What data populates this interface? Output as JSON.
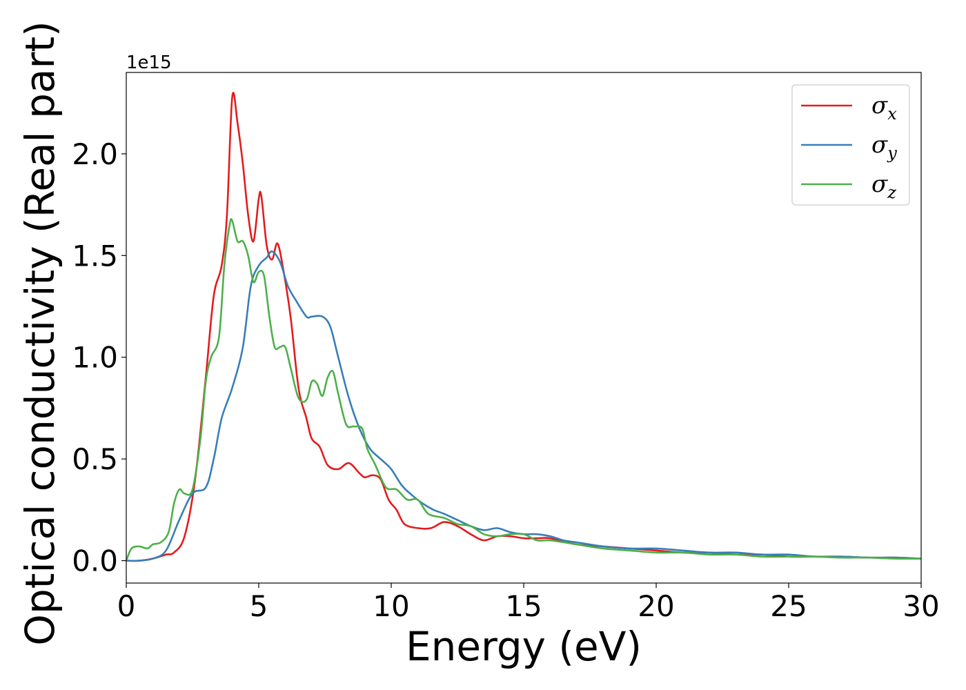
{
  "chart_data": {
    "type": "line",
    "title": "",
    "xlabel": "Energy (eV)",
    "ylabel": "Optical conductivity (Real part)",
    "y_offset_label": "1e15",
    "xlim": [
      0,
      30
    ],
    "ylim": [
      -0.11,
      2.4
    ],
    "x_ticks": [
      0,
      5,
      10,
      15,
      20,
      25,
      30
    ],
    "x_tick_labels": [
      "0",
      "5",
      "10",
      "15",
      "20",
      "25",
      "30"
    ],
    "y_ticks": [
      0.0,
      0.5,
      1.0,
      1.5,
      2.0
    ],
    "y_tick_labels": [
      "0.0",
      "0.5",
      "1.0",
      "1.5",
      "2.0"
    ],
    "grid": false,
    "legend_position": "top-right",
    "series": [
      {
        "name": "σx",
        "legend_main": "σ",
        "legend_sub": "x",
        "color": "#e41a1c",
        "points": [
          [
            0,
            0
          ],
          [
            0.5,
            0
          ],
          [
            1,
            0.01
          ],
          [
            1.5,
            0.03
          ],
          [
            1.8,
            0.04
          ],
          [
            2.2,
            0.12
          ],
          [
            2.6,
            0.4
          ],
          [
            3.0,
            0.9
          ],
          [
            3.3,
            1.3
          ],
          [
            3.6,
            1.45
          ],
          [
            3.8,
            1.7
          ],
          [
            4.0,
            2.28
          ],
          [
            4.2,
            2.15
          ],
          [
            4.4,
            1.95
          ],
          [
            4.6,
            1.7
          ],
          [
            4.8,
            1.57
          ],
          [
            5.0,
            1.78
          ],
          [
            5.1,
            1.79
          ],
          [
            5.3,
            1.55
          ],
          [
            5.5,
            1.48
          ],
          [
            5.7,
            1.56
          ],
          [
            5.9,
            1.45
          ],
          [
            6.2,
            1.2
          ],
          [
            6.5,
            0.85
          ],
          [
            6.8,
            0.7
          ],
          [
            7.0,
            0.6
          ],
          [
            7.3,
            0.56
          ],
          [
            7.6,
            0.47
          ],
          [
            8.0,
            0.45
          ],
          [
            8.4,
            0.48
          ],
          [
            8.8,
            0.43
          ],
          [
            9.0,
            0.41
          ],
          [
            9.3,
            0.42
          ],
          [
            9.6,
            0.4
          ],
          [
            9.9,
            0.3
          ],
          [
            10.2,
            0.25
          ],
          [
            10.5,
            0.18
          ],
          [
            11.0,
            0.16
          ],
          [
            11.5,
            0.16
          ],
          [
            12.0,
            0.19
          ],
          [
            12.5,
            0.17
          ],
          [
            13.0,
            0.13
          ],
          [
            13.5,
            0.1
          ],
          [
            14.0,
            0.12
          ],
          [
            14.5,
            0.12
          ],
          [
            15.0,
            0.11
          ],
          [
            15.5,
            0.11
          ],
          [
            16.0,
            0.11
          ],
          [
            17.0,
            0.08
          ],
          [
            18.0,
            0.07
          ],
          [
            19.0,
            0.06
          ],
          [
            20.0,
            0.05
          ],
          [
            21.0,
            0.04
          ],
          [
            22.0,
            0.04
          ],
          [
            23.0,
            0.03
          ],
          [
            24.0,
            0.03
          ],
          [
            25.0,
            0.02
          ],
          [
            26.0,
            0.02
          ],
          [
            27.0,
            0.02
          ],
          [
            28.0,
            0.015
          ],
          [
            29.0,
            0.015
          ],
          [
            30.0,
            0.01
          ]
        ]
      },
      {
        "name": "σy",
        "legend_main": "σ",
        "legend_sub": "y",
        "color": "#377eb8",
        "points": [
          [
            0,
            0
          ],
          [
            0.5,
            0
          ],
          [
            1,
            0.01
          ],
          [
            1.5,
            0.05
          ],
          [
            2.0,
            0.2
          ],
          [
            2.5,
            0.33
          ],
          [
            3.0,
            0.36
          ],
          [
            3.3,
            0.5
          ],
          [
            3.6,
            0.7
          ],
          [
            4.0,
            0.85
          ],
          [
            4.4,
            1.05
          ],
          [
            4.7,
            1.35
          ],
          [
            5.0,
            1.45
          ],
          [
            5.3,
            1.49
          ],
          [
            5.5,
            1.52
          ],
          [
            5.8,
            1.47
          ],
          [
            6.1,
            1.35
          ],
          [
            6.4,
            1.28
          ],
          [
            6.8,
            1.2
          ],
          [
            7.0,
            1.2
          ],
          [
            7.4,
            1.2
          ],
          [
            7.7,
            1.15
          ],
          [
            8.0,
            1.0
          ],
          [
            8.4,
            0.8
          ],
          [
            8.8,
            0.65
          ],
          [
            9.2,
            0.55
          ],
          [
            9.6,
            0.5
          ],
          [
            10.0,
            0.45
          ],
          [
            10.4,
            0.37
          ],
          [
            10.8,
            0.32
          ],
          [
            11.2,
            0.28
          ],
          [
            11.6,
            0.25
          ],
          [
            12.0,
            0.23
          ],
          [
            12.5,
            0.2
          ],
          [
            13.0,
            0.17
          ],
          [
            13.5,
            0.15
          ],
          [
            14.0,
            0.16
          ],
          [
            14.5,
            0.14
          ],
          [
            15.0,
            0.13
          ],
          [
            15.5,
            0.13
          ],
          [
            16.0,
            0.12
          ],
          [
            16.5,
            0.1
          ],
          [
            17.0,
            0.09
          ],
          [
            18.0,
            0.07
          ],
          [
            19.0,
            0.06
          ],
          [
            20.0,
            0.06
          ],
          [
            21.0,
            0.05
          ],
          [
            22.0,
            0.04
          ],
          [
            23.0,
            0.04
          ],
          [
            24.0,
            0.03
          ],
          [
            25.0,
            0.03
          ],
          [
            26.0,
            0.02
          ],
          [
            27.0,
            0.02
          ],
          [
            28.0,
            0.015
          ],
          [
            29.0,
            0.015
          ],
          [
            30.0,
            0.01
          ]
        ]
      },
      {
        "name": "σz",
        "legend_main": "σ",
        "legend_sub": "z",
        "color": "#4daf4a",
        "points": [
          [
            0,
            0
          ],
          [
            0.2,
            0.06
          ],
          [
            0.5,
            0.07
          ],
          [
            0.8,
            0.06
          ],
          [
            1.0,
            0.08
          ],
          [
            1.3,
            0.09
          ],
          [
            1.6,
            0.14
          ],
          [
            1.8,
            0.28
          ],
          [
            2.0,
            0.35
          ],
          [
            2.2,
            0.33
          ],
          [
            2.5,
            0.35
          ],
          [
            2.8,
            0.6
          ],
          [
            3.0,
            0.88
          ],
          [
            3.2,
            1.0
          ],
          [
            3.5,
            1.1
          ],
          [
            3.7,
            1.45
          ],
          [
            3.9,
            1.65
          ],
          [
            4.0,
            1.67
          ],
          [
            4.2,
            1.57
          ],
          [
            4.4,
            1.57
          ],
          [
            4.6,
            1.5
          ],
          [
            4.8,
            1.37
          ],
          [
            5.0,
            1.42
          ],
          [
            5.2,
            1.4
          ],
          [
            5.4,
            1.2
          ],
          [
            5.6,
            1.05
          ],
          [
            5.8,
            1.05
          ],
          [
            6.0,
            1.05
          ],
          [
            6.2,
            0.95
          ],
          [
            6.5,
            0.8
          ],
          [
            6.8,
            0.79
          ],
          [
            7.0,
            0.88
          ],
          [
            7.2,
            0.87
          ],
          [
            7.4,
            0.81
          ],
          [
            7.6,
            0.9
          ],
          [
            7.8,
            0.93
          ],
          [
            8.0,
            0.82
          ],
          [
            8.3,
            0.67
          ],
          [
            8.6,
            0.66
          ],
          [
            8.9,
            0.65
          ],
          [
            9.1,
            0.55
          ],
          [
            9.4,
            0.47
          ],
          [
            9.8,
            0.36
          ],
          [
            10.2,
            0.35
          ],
          [
            10.6,
            0.3
          ],
          [
            11.0,
            0.3
          ],
          [
            11.4,
            0.23
          ],
          [
            12.0,
            0.21
          ],
          [
            12.5,
            0.18
          ],
          [
            13.0,
            0.17
          ],
          [
            13.5,
            0.13
          ],
          [
            14.0,
            0.12
          ],
          [
            14.5,
            0.13
          ],
          [
            15.0,
            0.13
          ],
          [
            15.5,
            0.1
          ],
          [
            16.0,
            0.1
          ],
          [
            17.0,
            0.08
          ],
          [
            18.0,
            0.06
          ],
          [
            19.0,
            0.05
          ],
          [
            20.0,
            0.04
          ],
          [
            21.0,
            0.04
          ],
          [
            22.0,
            0.03
          ],
          [
            23.0,
            0.03
          ],
          [
            24.0,
            0.02
          ],
          [
            25.0,
            0.02
          ],
          [
            26.0,
            0.02
          ],
          [
            27.0,
            0.015
          ],
          [
            28.0,
            0.015
          ],
          [
            29.0,
            0.01
          ],
          [
            30.0,
            0.01
          ]
        ]
      }
    ]
  }
}
